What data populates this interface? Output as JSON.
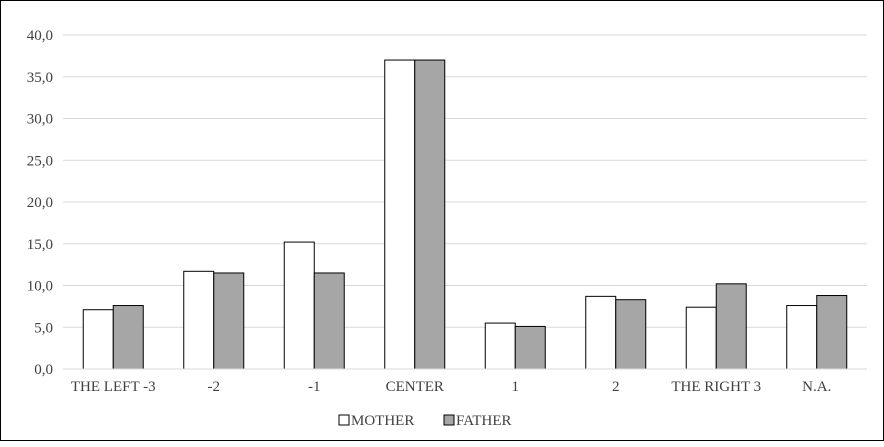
{
  "chart_data": {
    "type": "bar",
    "title": "",
    "xlabel": "",
    "ylabel": "",
    "ylim": [
      0,
      40
    ],
    "y_ticks": [
      "0,0",
      "5,0",
      "10,0",
      "15,0",
      "20,0",
      "25,0",
      "30,0",
      "35,0",
      "40,0"
    ],
    "grid": true,
    "legend_position": "bottom",
    "categories": [
      "THE LEFT -3",
      "-2",
      "-1",
      "CENTER",
      "1",
      "2",
      "THE RIGHT 3",
      "N.A."
    ],
    "series": [
      {
        "name": "MOTHER",
        "color": "#ffffff",
        "values": [
          7.1,
          11.7,
          15.2,
          37.0,
          5.5,
          8.7,
          7.4,
          7.6
        ]
      },
      {
        "name": "FATHER",
        "color": "#a6a6a6",
        "values": [
          7.6,
          11.5,
          11.5,
          37.0,
          5.1,
          8.3,
          10.2,
          8.8
        ]
      }
    ]
  }
}
